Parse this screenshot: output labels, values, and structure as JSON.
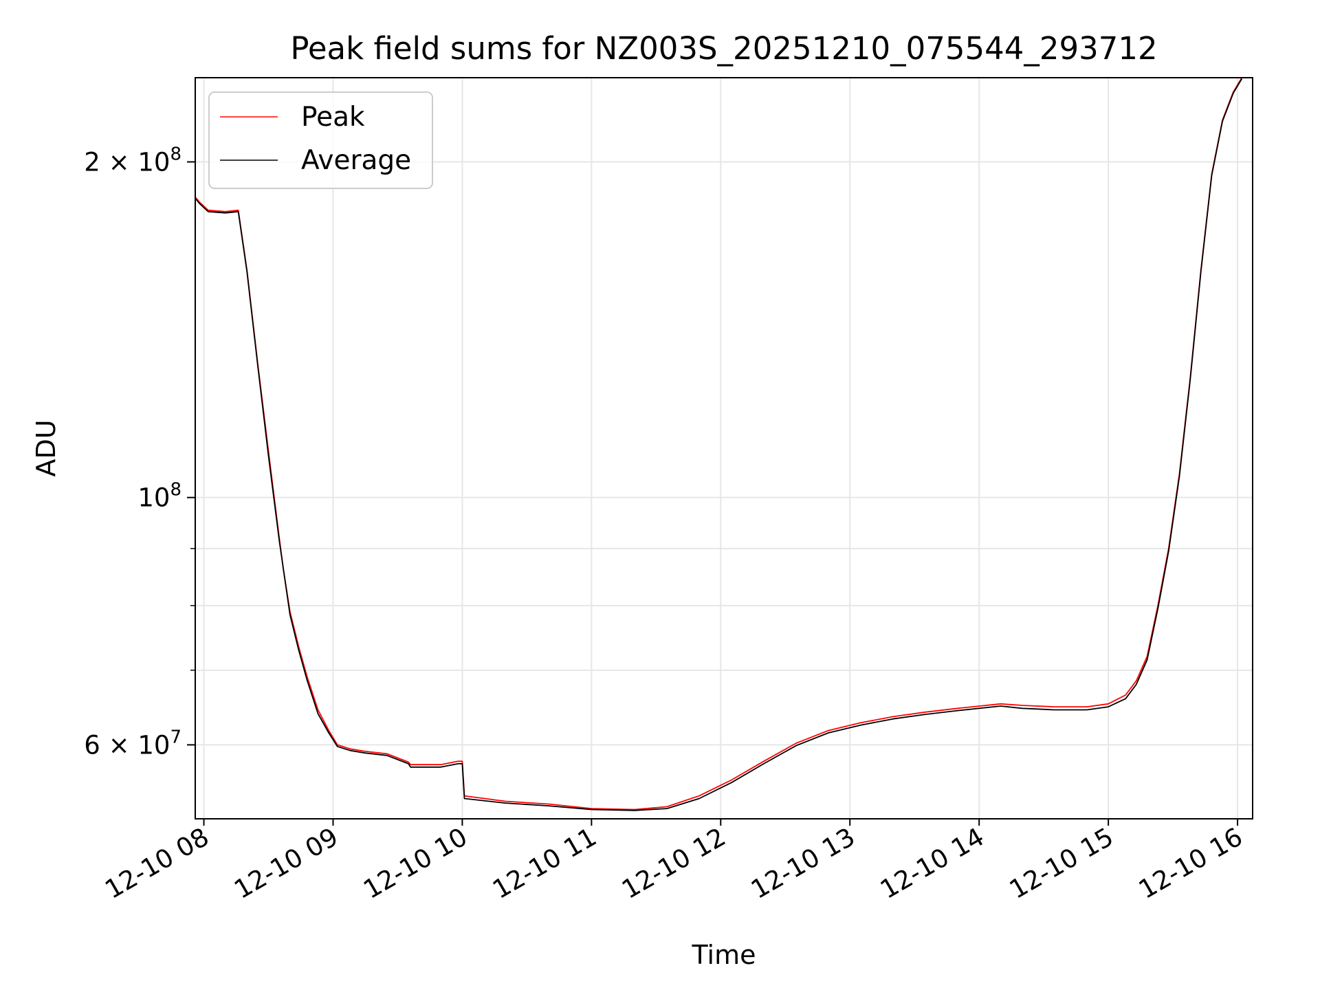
{
  "chart_data": {
    "type": "line",
    "title": "Peak field sums for NZ003S_20251210_075544_293712",
    "xlabel": "Time",
    "ylabel": "ADU",
    "x_axis_type": "datetime",
    "x_tick_labels": [
      "12-10 08",
      "12-10 09",
      "12-10 10",
      "12-10 11",
      "12-10 12",
      "12-10 13",
      "12-10 14",
      "12-10 15",
      "12-10 16"
    ],
    "x_tick_values": [
      "2025-12-10 08:00",
      "2025-12-10 09:00",
      "2025-12-10 10:00",
      "2025-12-10 11:00",
      "2025-12-10 12:00",
      "2025-12-10 13:00",
      "2025-12-10 14:00",
      "2025-12-10 15:00",
      "2025-12-10 16:00"
    ],
    "xlim": [
      "2025-12-10 07:56",
      "2025-12-10 16:07"
    ],
    "y_scale": "log",
    "ylim": [
      51500000,
      238000000
    ],
    "y_major_ticks": [
      {
        "value": 200000000,
        "mantissa": "2",
        "exponent": "8"
      },
      {
        "value": 100000000,
        "mantissa": "",
        "exponent": "8"
      },
      {
        "value": 60000000,
        "mantissa": "6",
        "exponent": "7"
      }
    ],
    "y_minor_ticks": [
      70000000,
      80000000,
      90000000
    ],
    "grid": true,
    "legend_position": "upper left",
    "series": [
      {
        "name": "Peak",
        "color": "#ff0000",
        "x": [
          "2025-12-10 07:56",
          "2025-12-10 07:58",
          "2025-12-10 08:02",
          "2025-12-10 08:10",
          "2025-12-10 08:16",
          "2025-12-10 08:20",
          "2025-12-10 08:25",
          "2025-12-10 08:30",
          "2025-12-10 08:35",
          "2025-12-10 08:37",
          "2025-12-10 08:40",
          "2025-12-10 08:44",
          "2025-12-10 08:48",
          "2025-12-10 08:53",
          "2025-12-10 08:58",
          "2025-12-10 09:02",
          "2025-12-10 09:08",
          "2025-12-10 09:15",
          "2025-12-10 09:25",
          "2025-12-10 09:35",
          "2025-12-10 09:36",
          "2025-12-10 09:50",
          "2025-12-10 09:58",
          "2025-12-10 10:00",
          "2025-12-10 10:01",
          "2025-12-10 10:20",
          "2025-12-10 10:40",
          "2025-12-10 11:00",
          "2025-12-10 11:20",
          "2025-12-10 11:35",
          "2025-12-10 11:50",
          "2025-12-10 12:05",
          "2025-12-10 12:20",
          "2025-12-10 12:35",
          "2025-12-10 12:50",
          "2025-12-10 13:05",
          "2025-12-10 13:20",
          "2025-12-10 13:35",
          "2025-12-10 13:50",
          "2025-12-10 14:10",
          "2025-12-10 14:20",
          "2025-12-10 14:35",
          "2025-12-10 14:50",
          "2025-12-10 15:00",
          "2025-12-10 15:08",
          "2025-12-10 15:13",
          "2025-12-10 15:18",
          "2025-12-10 15:23",
          "2025-12-10 15:28",
          "2025-12-10 15:33",
          "2025-12-10 15:38",
          "2025-12-10 15:43",
          "2025-12-10 15:48",
          "2025-12-10 15:53",
          "2025-12-10 15:58",
          "2025-12-10 16:02"
        ],
        "y": [
          186000000,
          184000000,
          181000000,
          180500000,
          181000000,
          160000000,
          132000000,
          110000000,
          92000000,
          86000000,
          79000000,
          73500000,
          69000000,
          64500000,
          61800000,
          60000000,
          59500000,
          59200000,
          58900000,
          57900000,
          57600000,
          57600000,
          58000000,
          58000000,
          54000000,
          53400000,
          53100000,
          52600000,
          52500000,
          52800000,
          54000000,
          55800000,
          58000000,
          60200000,
          61800000,
          62800000,
          63600000,
          64200000,
          64700000,
          65300000,
          65100000,
          64900000,
          64900000,
          65300000,
          66500000,
          68500000,
          72000000,
          80000000,
          90000000,
          105000000,
          128000000,
          160000000,
          195000000,
          218000000,
          231000000,
          238000000
        ]
      },
      {
        "name": "Average",
        "color": "#000000",
        "x": [
          "2025-12-10 07:56",
          "2025-12-10 07:58",
          "2025-12-10 08:02",
          "2025-12-10 08:10",
          "2025-12-10 08:16",
          "2025-12-10 08:20",
          "2025-12-10 08:25",
          "2025-12-10 08:30",
          "2025-12-10 08:35",
          "2025-12-10 08:40",
          "2025-12-10 08:44",
          "2025-12-10 08:48",
          "2025-12-10 08:53",
          "2025-12-10 08:58",
          "2025-12-10 09:02",
          "2025-12-10 09:08",
          "2025-12-10 09:15",
          "2025-12-10 09:25",
          "2025-12-10 09:35",
          "2025-12-10 09:36",
          "2025-12-10 09:50",
          "2025-12-10 09:58",
          "2025-12-10 10:00",
          "2025-12-10 10:01",
          "2025-12-10 10:20",
          "2025-12-10 10:40",
          "2025-12-10 11:00",
          "2025-12-10 11:20",
          "2025-12-10 11:35",
          "2025-12-10 11:50",
          "2025-12-10 12:05",
          "2025-12-10 12:20",
          "2025-12-10 12:35",
          "2025-12-10 12:50",
          "2025-12-10 13:05",
          "2025-12-10 13:20",
          "2025-12-10 13:35",
          "2025-12-10 13:50",
          "2025-12-10 14:10",
          "2025-12-10 14:20",
          "2025-12-10 14:35",
          "2025-12-10 14:50",
          "2025-12-10 15:00",
          "2025-12-10 15:08",
          "2025-12-10 15:13",
          "2025-12-10 15:18",
          "2025-12-10 15:23",
          "2025-12-10 15:28",
          "2025-12-10 15:33",
          "2025-12-10 15:38",
          "2025-12-10 15:43",
          "2025-12-10 15:48",
          "2025-12-10 15:53",
          "2025-12-10 15:58",
          "2025-12-10 16:02"
        ],
        "y": [
          185500000,
          183500000,
          180500000,
          180000000,
          180500000,
          159500000,
          131500000,
          109000000,
          91500000,
          78500000,
          73000000,
          68500000,
          64000000,
          61500000,
          59800000,
          59300000,
          59000000,
          58700000,
          57700000,
          57300000,
          57300000,
          57700000,
          57700000,
          53700000,
          53200000,
          52900000,
          52500000,
          52400000,
          52600000,
          53700000,
          55500000,
          57700000,
          59900000,
          61500000,
          62500000,
          63300000,
          63900000,
          64400000,
          65000000,
          64700000,
          64500000,
          64500000,
          64900000,
          66000000,
          68000000,
          71500000,
          79500000,
          89500000,
          104500000,
          127500000,
          159500000,
          194500000,
          217500000,
          230500000,
          237500000
        ]
      }
    ]
  }
}
